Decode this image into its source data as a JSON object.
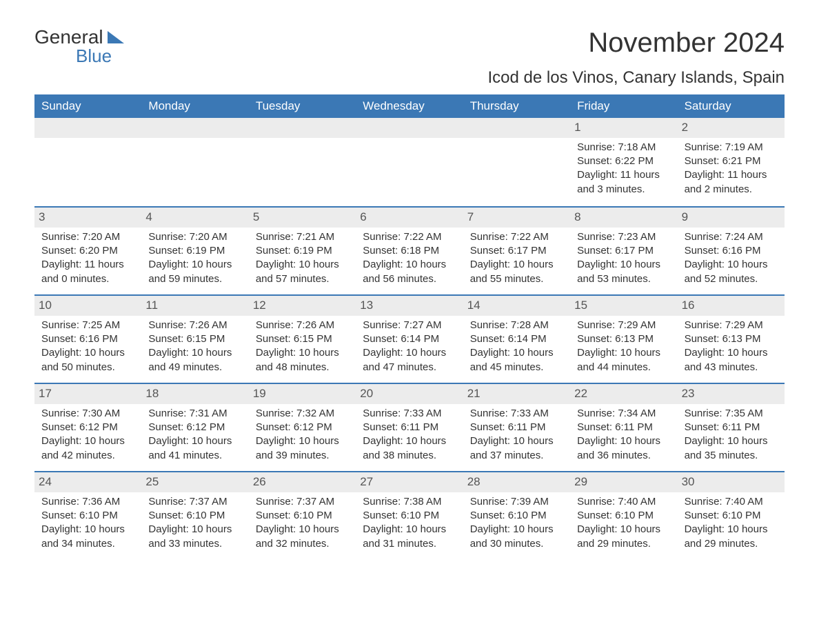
{
  "brand": {
    "word1": "General",
    "word2": "Blue"
  },
  "title": "November 2024",
  "location": "Icod de los Vinos, Canary Islands, Spain",
  "colors": {
    "header_bg": "#3b78b5",
    "header_text": "#ffffff",
    "daynum_bg": "#ececec",
    "row_border": "#3b78b5",
    "body_text": "#333333",
    "page_bg": "#ffffff"
  },
  "layout": {
    "columns": 7,
    "rows": 5,
    "first_day_column_index": 5
  },
  "labels": {
    "sunrise_prefix": "Sunrise: ",
    "sunset_prefix": "Sunset: ",
    "daylight_prefix": "Daylight: "
  },
  "days_of_week": [
    "Sunday",
    "Monday",
    "Tuesday",
    "Wednesday",
    "Thursday",
    "Friday",
    "Saturday"
  ],
  "days": [
    {
      "n": 1,
      "sunrise": "7:18 AM",
      "sunset": "6:22 PM",
      "daylight": "11 hours and 3 minutes."
    },
    {
      "n": 2,
      "sunrise": "7:19 AM",
      "sunset": "6:21 PM",
      "daylight": "11 hours and 2 minutes."
    },
    {
      "n": 3,
      "sunrise": "7:20 AM",
      "sunset": "6:20 PM",
      "daylight": "11 hours and 0 minutes."
    },
    {
      "n": 4,
      "sunrise": "7:20 AM",
      "sunset": "6:19 PM",
      "daylight": "10 hours and 59 minutes."
    },
    {
      "n": 5,
      "sunrise": "7:21 AM",
      "sunset": "6:19 PM",
      "daylight": "10 hours and 57 minutes."
    },
    {
      "n": 6,
      "sunrise": "7:22 AM",
      "sunset": "6:18 PM",
      "daylight": "10 hours and 56 minutes."
    },
    {
      "n": 7,
      "sunrise": "7:22 AM",
      "sunset": "6:17 PM",
      "daylight": "10 hours and 55 minutes."
    },
    {
      "n": 8,
      "sunrise": "7:23 AM",
      "sunset": "6:17 PM",
      "daylight": "10 hours and 53 minutes."
    },
    {
      "n": 9,
      "sunrise": "7:24 AM",
      "sunset": "6:16 PM",
      "daylight": "10 hours and 52 minutes."
    },
    {
      "n": 10,
      "sunrise": "7:25 AM",
      "sunset": "6:16 PM",
      "daylight": "10 hours and 50 minutes."
    },
    {
      "n": 11,
      "sunrise": "7:26 AM",
      "sunset": "6:15 PM",
      "daylight": "10 hours and 49 minutes."
    },
    {
      "n": 12,
      "sunrise": "7:26 AM",
      "sunset": "6:15 PM",
      "daylight": "10 hours and 48 minutes."
    },
    {
      "n": 13,
      "sunrise": "7:27 AM",
      "sunset": "6:14 PM",
      "daylight": "10 hours and 47 minutes."
    },
    {
      "n": 14,
      "sunrise": "7:28 AM",
      "sunset": "6:14 PM",
      "daylight": "10 hours and 45 minutes."
    },
    {
      "n": 15,
      "sunrise": "7:29 AM",
      "sunset": "6:13 PM",
      "daylight": "10 hours and 44 minutes."
    },
    {
      "n": 16,
      "sunrise": "7:29 AM",
      "sunset": "6:13 PM",
      "daylight": "10 hours and 43 minutes."
    },
    {
      "n": 17,
      "sunrise": "7:30 AM",
      "sunset": "6:12 PM",
      "daylight": "10 hours and 42 minutes."
    },
    {
      "n": 18,
      "sunrise": "7:31 AM",
      "sunset": "6:12 PM",
      "daylight": "10 hours and 41 minutes."
    },
    {
      "n": 19,
      "sunrise": "7:32 AM",
      "sunset": "6:12 PM",
      "daylight": "10 hours and 39 minutes."
    },
    {
      "n": 20,
      "sunrise": "7:33 AM",
      "sunset": "6:11 PM",
      "daylight": "10 hours and 38 minutes."
    },
    {
      "n": 21,
      "sunrise": "7:33 AM",
      "sunset": "6:11 PM",
      "daylight": "10 hours and 37 minutes."
    },
    {
      "n": 22,
      "sunrise": "7:34 AM",
      "sunset": "6:11 PM",
      "daylight": "10 hours and 36 minutes."
    },
    {
      "n": 23,
      "sunrise": "7:35 AM",
      "sunset": "6:11 PM",
      "daylight": "10 hours and 35 minutes."
    },
    {
      "n": 24,
      "sunrise": "7:36 AM",
      "sunset": "6:10 PM",
      "daylight": "10 hours and 34 minutes."
    },
    {
      "n": 25,
      "sunrise": "7:37 AM",
      "sunset": "6:10 PM",
      "daylight": "10 hours and 33 minutes."
    },
    {
      "n": 26,
      "sunrise": "7:37 AM",
      "sunset": "6:10 PM",
      "daylight": "10 hours and 32 minutes."
    },
    {
      "n": 27,
      "sunrise": "7:38 AM",
      "sunset": "6:10 PM",
      "daylight": "10 hours and 31 minutes."
    },
    {
      "n": 28,
      "sunrise": "7:39 AM",
      "sunset": "6:10 PM",
      "daylight": "10 hours and 30 minutes."
    },
    {
      "n": 29,
      "sunrise": "7:40 AM",
      "sunset": "6:10 PM",
      "daylight": "10 hours and 29 minutes."
    },
    {
      "n": 30,
      "sunrise": "7:40 AM",
      "sunset": "6:10 PM",
      "daylight": "10 hours and 29 minutes."
    }
  ]
}
